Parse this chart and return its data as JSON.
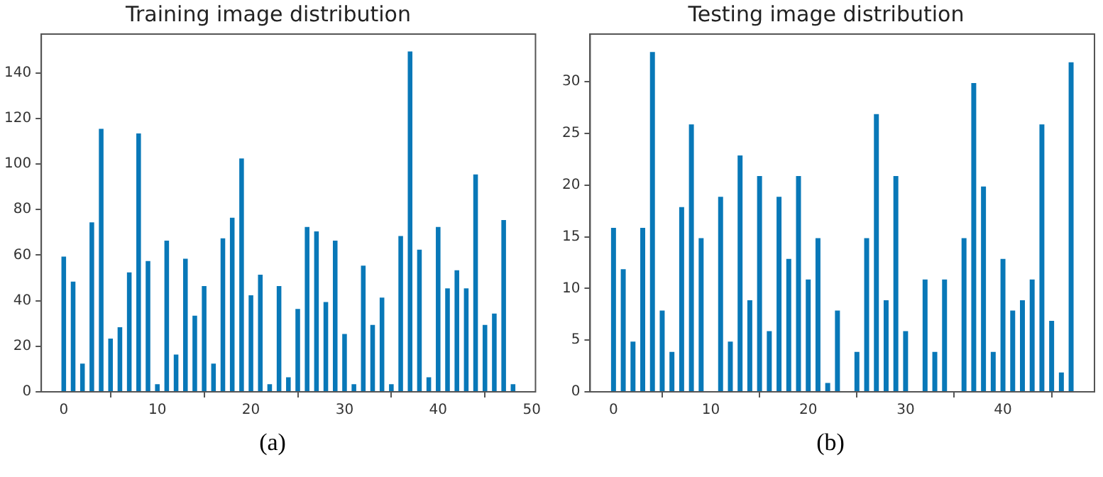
{
  "chart_data": [
    {
      "type": "bar",
      "title": "Training image distribution",
      "x": [
        0,
        1,
        2,
        3,
        4,
        5,
        6,
        7,
        8,
        9,
        10,
        11,
        12,
        13,
        14,
        15,
        16,
        17,
        18,
        19,
        20,
        21,
        22,
        23,
        24,
        25,
        26,
        27,
        28,
        29,
        30,
        31,
        32,
        33,
        34,
        35,
        36,
        37,
        38,
        39,
        40,
        41,
        42,
        43,
        44,
        45,
        46,
        47,
        48
      ],
      "values": [
        60,
        49,
        13,
        75,
        116,
        24,
        29,
        53,
        114,
        58,
        4,
        67,
        17,
        59,
        34,
        47,
        13,
        68,
        77,
        103,
        43,
        52,
        4,
        47,
        7,
        37,
        73,
        71,
        40,
        67,
        26,
        4,
        56,
        30,
        42,
        4,
        69,
        150,
        63,
        7,
        73,
        46,
        54,
        46,
        96,
        30,
        35,
        76,
        4
      ],
      "color": "#0878b8",
      "xlim": [
        -2.4,
        50.4
      ],
      "xticks": [
        0,
        10,
        20,
        30,
        40,
        50
      ],
      "ylim": [
        0,
        157
      ],
      "yticks": [
        0,
        20,
        40,
        60,
        80,
        100,
        120,
        140
      ],
      "grid": false,
      "legend": false,
      "annotations": [
        "(a)"
      ]
    },
    {
      "type": "bar",
      "title": "Testing image distribution",
      "x": [
        0,
        1,
        2,
        3,
        4,
        5,
        6,
        7,
        8,
        9,
        10,
        11,
        12,
        13,
        14,
        15,
        16,
        17,
        18,
        19,
        20,
        21,
        22,
        23,
        24,
        25,
        26,
        27,
        28,
        29,
        30,
        31,
        32,
        33,
        34,
        35,
        36,
        37,
        38,
        39,
        40,
        41,
        42,
        43,
        44,
        45,
        46,
        47
      ],
      "values": [
        16,
        12,
        5,
        16,
        33,
        8,
        4,
        18,
        26,
        15,
        0,
        19,
        5,
        23,
        9,
        21,
        6,
        19,
        13,
        21,
        11,
        15,
        1,
        8,
        0,
        4,
        15,
        27,
        9,
        21,
        6,
        0,
        11,
        4,
        11,
        0,
        15,
        30,
        20,
        4,
        13,
        8,
        9,
        11,
        26,
        7,
        2,
        32
      ],
      "color": "#0878b8",
      "xlim": [
        -2.4,
        49.4
      ],
      "xticks": [
        0,
        10,
        20,
        30,
        40
      ],
      "ylim": [
        0,
        34.6
      ],
      "yticks": [
        0,
        5,
        10,
        15,
        20,
        25,
        30
      ],
      "grid": false,
      "legend": false,
      "annotations": [
        "(b)"
      ]
    }
  ]
}
